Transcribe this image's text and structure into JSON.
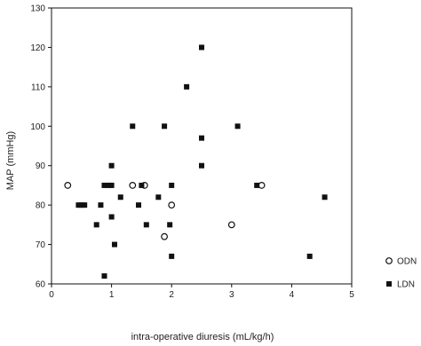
{
  "chart_data": {
    "type": "scatter",
    "xlabel": "intra-operative diuresis (mL/kg/h)",
    "ylabel": "MAP (mmHg)",
    "xlim": [
      0,
      5
    ],
    "ylim": [
      60,
      130
    ],
    "xticks": [
      0,
      1,
      2,
      3,
      4,
      5
    ],
    "yticks": [
      60,
      70,
      80,
      90,
      100,
      110,
      120,
      130
    ],
    "grid": false,
    "legend_placement": "right-bottom",
    "series": [
      {
        "name": "ODN",
        "marker": "open-circle",
        "color": "#111111",
        "points": [
          {
            "x": 0.27,
            "y": 85
          },
          {
            "x": 1.35,
            "y": 85
          },
          {
            "x": 1.55,
            "y": 85
          },
          {
            "x": 1.88,
            "y": 72
          },
          {
            "x": 2.0,
            "y": 80
          },
          {
            "x": 3.0,
            "y": 75
          },
          {
            "x": 3.5,
            "y": 85
          }
        ]
      },
      {
        "name": "LDN",
        "marker": "filled-square",
        "color": "#111111",
        "points": [
          {
            "x": 0.45,
            "y": 80
          },
          {
            "x": 0.5,
            "y": 80
          },
          {
            "x": 0.55,
            "y": 80
          },
          {
            "x": 0.75,
            "y": 75
          },
          {
            "x": 0.82,
            "y": 80
          },
          {
            "x": 0.88,
            "y": 85
          },
          {
            "x": 0.88,
            "y": 62
          },
          {
            "x": 0.95,
            "y": 85
          },
          {
            "x": 1.0,
            "y": 77
          },
          {
            "x": 1.0,
            "y": 85
          },
          {
            "x": 1.0,
            "y": 90
          },
          {
            "x": 1.05,
            "y": 70
          },
          {
            "x": 1.15,
            "y": 82
          },
          {
            "x": 1.35,
            "y": 100
          },
          {
            "x": 1.45,
            "y": 80
          },
          {
            "x": 1.5,
            "y": 85
          },
          {
            "x": 1.58,
            "y": 75
          },
          {
            "x": 1.78,
            "y": 82
          },
          {
            "x": 1.88,
            "y": 100
          },
          {
            "x": 1.97,
            "y": 75
          },
          {
            "x": 2.0,
            "y": 85
          },
          {
            "x": 2.0,
            "y": 67
          },
          {
            "x": 2.25,
            "y": 110
          },
          {
            "x": 2.5,
            "y": 120
          },
          {
            "x": 2.5,
            "y": 97
          },
          {
            "x": 2.5,
            "y": 90
          },
          {
            "x": 3.1,
            "y": 100
          },
          {
            "x": 3.42,
            "y": 85
          },
          {
            "x": 4.3,
            "y": 67
          },
          {
            "x": 4.55,
            "y": 82
          }
        ]
      }
    ]
  }
}
